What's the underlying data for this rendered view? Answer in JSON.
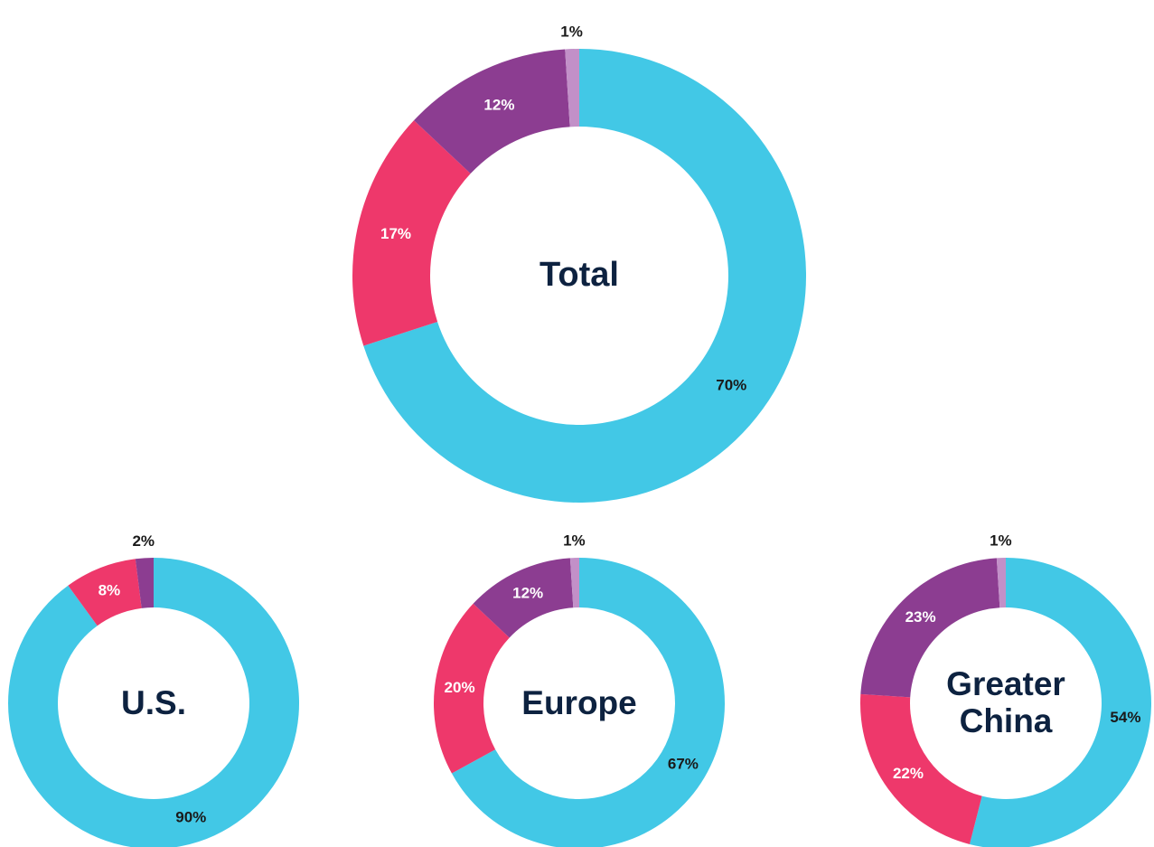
{
  "chart_data": [
    {
      "type": "pie",
      "title": "Total",
      "values": [
        70,
        17,
        12,
        1
      ],
      "value_labels": [
        "70%",
        "17%",
        "12%",
        "1%"
      ],
      "colors": [
        "#42c8e6",
        "#ee386b",
        "#8c3d91",
        "#c290c8"
      ]
    },
    {
      "type": "pie",
      "title": "U.S.",
      "values": [
        90,
        8,
        2
      ],
      "value_labels": [
        "90%",
        "8%",
        "2%"
      ],
      "colors": [
        "#42c8e6",
        "#ee386b",
        "#8c3d91"
      ]
    },
    {
      "type": "pie",
      "title": "Europe",
      "values": [
        67,
        20,
        12,
        1
      ],
      "value_labels": [
        "67%",
        "20%",
        "12%",
        "1%"
      ],
      "colors": [
        "#42c8e6",
        "#ee386b",
        "#8c3d91",
        "#c290c8"
      ]
    },
    {
      "type": "pie",
      "title": "Greater China",
      "values": [
        54,
        22,
        23,
        1
      ],
      "value_labels": [
        "54%",
        "22%",
        "23%",
        "1%"
      ],
      "colors": [
        "#42c8e6",
        "#ee386b",
        "#8c3d91",
        "#c290c8"
      ]
    }
  ]
}
